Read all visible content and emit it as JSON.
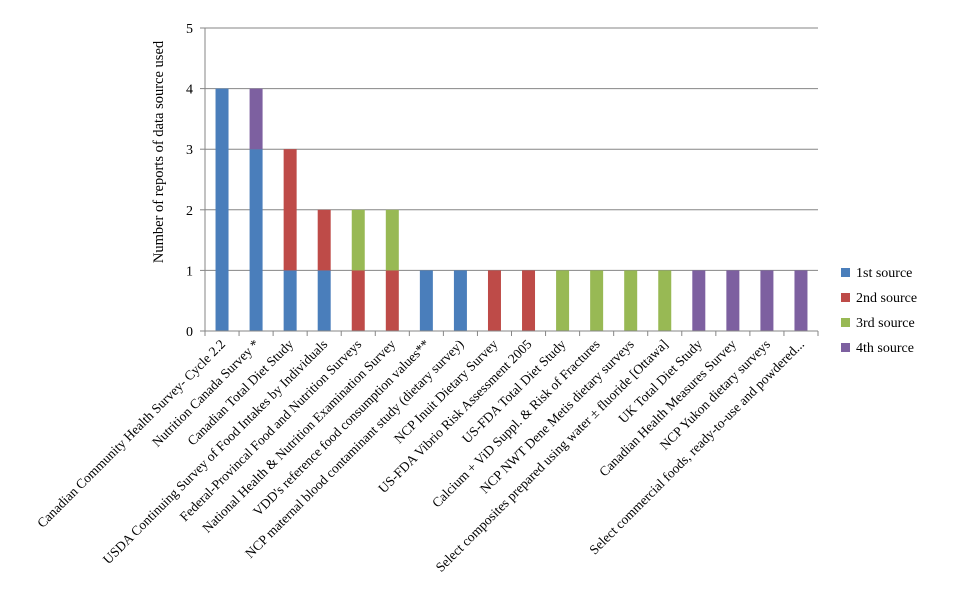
{
  "chart_data": {
    "type": "bar",
    "stacked": true,
    "title": "",
    "xlabel": "",
    "ylabel": "Number of reports of data source used",
    "ylim": [
      0,
      5
    ],
    "yticks": [
      0,
      1,
      2,
      3,
      4,
      5
    ],
    "grid": true,
    "legend_position": "right",
    "categories": [
      "Canadian Community Health Survey- Cycle 2.2",
      "Nutrition Canada Survey *",
      "Canadian Total Diet Study",
      "USDA Continuing Survey of Food Intakes by Individuals",
      "Federal-Provincal Food and Nutrition Surveys",
      "National Health & Nutrition Examination Survey",
      "VDD's reference food consumption values**",
      "NCP maternal blood contaminant study (dietary survey)",
      "NCP Inuit Dietary Survey",
      "US-FDA Vibrio Risk Assessment 2005",
      "US-FDA Total Diet Study",
      "Calcium + ViD Suppl. & Risk of Fractures",
      "NCP NWT Dene Metis dietary surveys",
      "Select composites prepared using water ± fluoride [Ottawa]",
      "UK Total Diet Study",
      "Canadian Health Measures Survey",
      "NCP Yukon dietary surveys",
      "Select commercial foods, ready-to-use and powdered..."
    ],
    "series": [
      {
        "name": "1st source",
        "color": "#4a7ebb",
        "values": [
          4,
          3,
          1,
          1,
          0,
          0,
          1,
          1,
          0,
          0,
          0,
          0,
          0,
          0,
          0,
          0,
          0,
          0
        ]
      },
      {
        "name": "2nd source",
        "color": "#be4b48",
        "values": [
          0,
          0,
          2,
          1,
          1,
          1,
          0,
          0,
          1,
          1,
          0,
          0,
          0,
          0,
          0,
          0,
          0,
          0
        ]
      },
      {
        "name": "3rd source",
        "color": "#98b954",
        "values": [
          0,
          0,
          0,
          0,
          1,
          1,
          0,
          0,
          0,
          0,
          1,
          1,
          1,
          1,
          0,
          0,
          0,
          0
        ]
      },
      {
        "name": "4th source",
        "color": "#7d60a0",
        "values": [
          0,
          1,
          0,
          0,
          0,
          0,
          0,
          0,
          0,
          0,
          0,
          0,
          0,
          0,
          1,
          1,
          1,
          1
        ]
      }
    ]
  }
}
